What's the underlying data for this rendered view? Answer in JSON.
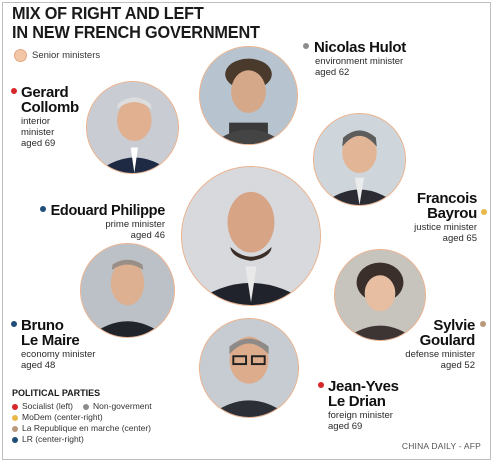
{
  "title": {
    "line1": "MIX OF RIGHT AND LEFT",
    "line2": "IN NEW FRENCH GOVERNMENT"
  },
  "legend": {
    "label": "Senior ministers",
    "color": "#f2c7a8"
  },
  "colors": {
    "socialist": "#d7262b",
    "non_government": "#8c8c8c",
    "modem": "#e9b84a",
    "lrem": "#b89a7a",
    "lr": "#1f4e79"
  },
  "people": {
    "hulot": {
      "name": "Nicolas Hulot",
      "role": "environment minister",
      "age": "aged 62",
      "party": "non_government",
      "icon": "portrait-icon"
    },
    "collomb": {
      "name_1": "Gerard",
      "name_2": "Collomb",
      "role_1": "interior",
      "role_2": "minister",
      "age": "aged 69",
      "party": "socialist",
      "icon": "portrait-icon"
    },
    "bayrou": {
      "name_1": "Francois",
      "name_2": "Bayrou",
      "role": "justice minister",
      "age": "aged 65",
      "party": "modem",
      "icon": "portrait-icon"
    },
    "philippe": {
      "name": "Edouard Philippe",
      "role": "prime minister",
      "age": "aged 46",
      "party": "lr",
      "icon": "portrait-icon"
    },
    "goulard": {
      "name_1": "Sylvie",
      "name_2": "Goulard",
      "role": "defense minister",
      "age": "aged 52",
      "party": "lrem",
      "icon": "portrait-icon"
    },
    "lemaire": {
      "name_1": "Bruno",
      "name_2": "Le Maire",
      "role": "economy minister",
      "age": "aged 48",
      "party": "lr",
      "icon": "portrait-icon"
    },
    "ledrian": {
      "name_1": "Jean-Yves",
      "name_2": "Le Drian",
      "role": "foreign  minister",
      "age": "aged 69",
      "party": "socialist",
      "icon": "portrait-icon"
    }
  },
  "parties": {
    "heading": "POLITICAL PARTIES",
    "socialist": "Socialist (left)",
    "non_government": "Non-goverment",
    "modem": "MoDem (center-right)",
    "lrem": "La Republique en marche (center)",
    "lr": "LR (center-right)"
  },
  "credit": "CHINA DAILY - AFP"
}
